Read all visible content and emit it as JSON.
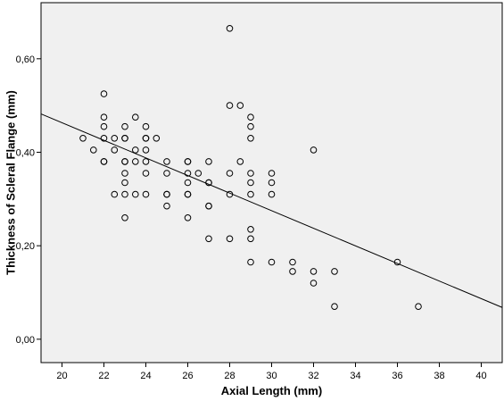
{
  "chart_data": {
    "type": "scatter",
    "title": "",
    "xlabel": "Axial Length (mm)",
    "ylabel": "Thickness of Scleral Flange (mm)",
    "xlim": [
      19,
      41
    ],
    "ylim": [
      -0.05,
      0.72
    ],
    "x_ticks": [
      20,
      22,
      24,
      26,
      28,
      30,
      32,
      34,
      36,
      38,
      40
    ],
    "x_tick_labels": [
      "20",
      "22",
      "24",
      "26",
      "28",
      "30",
      "32",
      "34",
      "36",
      "38",
      "40"
    ],
    "y_ticks": [
      0.0,
      0.2,
      0.4,
      0.6
    ],
    "y_tick_labels": [
      "0,00",
      "0,20",
      "0,40",
      "0,60"
    ],
    "grid": false,
    "background_color": "#f0f0f0",
    "marker_color": "#000000",
    "points": [
      [
        21,
        0.43
      ],
      [
        21.5,
        0.405
      ],
      [
        22,
        0.525
      ],
      [
        22,
        0.475
      ],
      [
        22,
        0.455
      ],
      [
        22,
        0.43
      ],
      [
        22,
        0.38
      ],
      [
        22,
        0.38
      ],
      [
        22.5,
        0.43
      ],
      [
        22.5,
        0.405
      ],
      [
        22.5,
        0.31
      ],
      [
        23,
        0.455
      ],
      [
        23,
        0.43
      ],
      [
        23,
        0.43
      ],
      [
        23,
        0.38
      ],
      [
        23,
        0.38
      ],
      [
        23,
        0.355
      ],
      [
        23,
        0.335
      ],
      [
        23,
        0.31
      ],
      [
        23,
        0.26
      ],
      [
        23.5,
        0.475
      ],
      [
        23.5,
        0.405
      ],
      [
        23.5,
        0.38
      ],
      [
        23.5,
        0.31
      ],
      [
        24,
        0.455
      ],
      [
        24,
        0.43
      ],
      [
        24,
        0.43
      ],
      [
        24,
        0.405
      ],
      [
        24,
        0.38
      ],
      [
        24,
        0.355
      ],
      [
        24,
        0.31
      ],
      [
        24.5,
        0.43
      ],
      [
        25,
        0.38
      ],
      [
        25,
        0.355
      ],
      [
        25,
        0.31
      ],
      [
        25,
        0.31
      ],
      [
        25,
        0.285
      ],
      [
        26,
        0.38
      ],
      [
        26,
        0.38
      ],
      [
        26,
        0.355
      ],
      [
        26,
        0.335
      ],
      [
        26,
        0.31
      ],
      [
        26,
        0.31
      ],
      [
        26,
        0.26
      ],
      [
        26.5,
        0.355
      ],
      [
        27,
        0.38
      ],
      [
        27,
        0.335
      ],
      [
        27,
        0.335
      ],
      [
        27,
        0.285
      ],
      [
        27,
        0.285
      ],
      [
        27,
        0.215
      ],
      [
        28,
        0.665
      ],
      [
        28,
        0.5
      ],
      [
        28,
        0.355
      ],
      [
        28,
        0.31
      ],
      [
        28,
        0.215
      ],
      [
        28.5,
        0.5
      ],
      [
        28.5,
        0.38
      ],
      [
        29,
        0.475
      ],
      [
        29,
        0.455
      ],
      [
        29,
        0.43
      ],
      [
        29,
        0.355
      ],
      [
        29,
        0.335
      ],
      [
        29,
        0.31
      ],
      [
        29,
        0.235
      ],
      [
        29,
        0.215
      ],
      [
        29,
        0.165
      ],
      [
        30,
        0.355
      ],
      [
        30,
        0.335
      ],
      [
        30,
        0.31
      ],
      [
        30,
        0.165
      ],
      [
        31,
        0.165
      ],
      [
        31,
        0.145
      ],
      [
        32,
        0.405
      ],
      [
        32,
        0.145
      ],
      [
        32,
        0.12
      ],
      [
        33,
        0.145
      ],
      [
        33,
        0.07
      ],
      [
        36,
        0.165
      ],
      [
        37,
        0.07
      ]
    ],
    "regression_line": {
      "x": [
        19,
        41
      ],
      "y": [
        0.482,
        0.068
      ]
    }
  }
}
